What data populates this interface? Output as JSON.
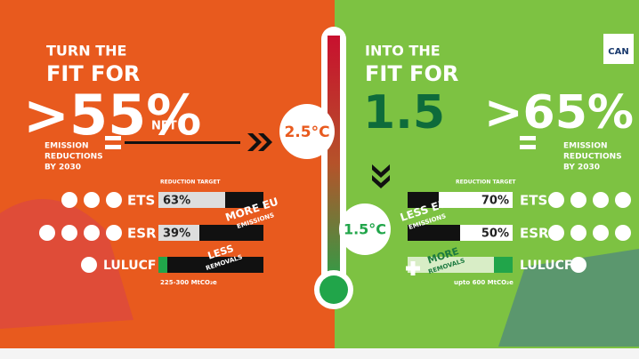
{
  "left": {
    "heading": "TURN THE",
    "title": "FIT FOR",
    "target": ">55%",
    "qualifier": "NET",
    "caption": [
      "EMISSION",
      "REDUCTIONS",
      "BY 2030"
    ],
    "bar_header": "REDUCTION TARGET",
    "rows": [
      {
        "label": "ETS",
        "value": "63%"
      },
      {
        "label": "ESR",
        "value": "39%"
      },
      {
        "label": "LULUCF"
      }
    ],
    "annotations": [
      "MORE EU",
      "EMISSIONS",
      "LESS",
      "REMOVALS"
    ],
    "footnote": "225-300 MtCO₂e"
  },
  "thermometer": {
    "high": "2.5°C",
    "low": "1.5°C"
  },
  "right": {
    "heading": "INTO THE",
    "title": "FIT FOR",
    "subtitle": "1.5",
    "target": ">65%",
    "caption": [
      "EMISSION",
      "REDUCTIONS",
      "BY 2030"
    ],
    "bar_header": "REDUCTION TARGET",
    "rows": [
      {
        "label": "ETS",
        "value": "70%"
      },
      {
        "label": "ESR",
        "value": "50%"
      },
      {
        "label": "LULUCF"
      }
    ],
    "annotations": [
      "LESS EU",
      "EMISSIONS",
      "MORE",
      "REMOVALS"
    ],
    "footnote": "upto 600 MtCO₂e"
  },
  "logo": "CAN"
}
